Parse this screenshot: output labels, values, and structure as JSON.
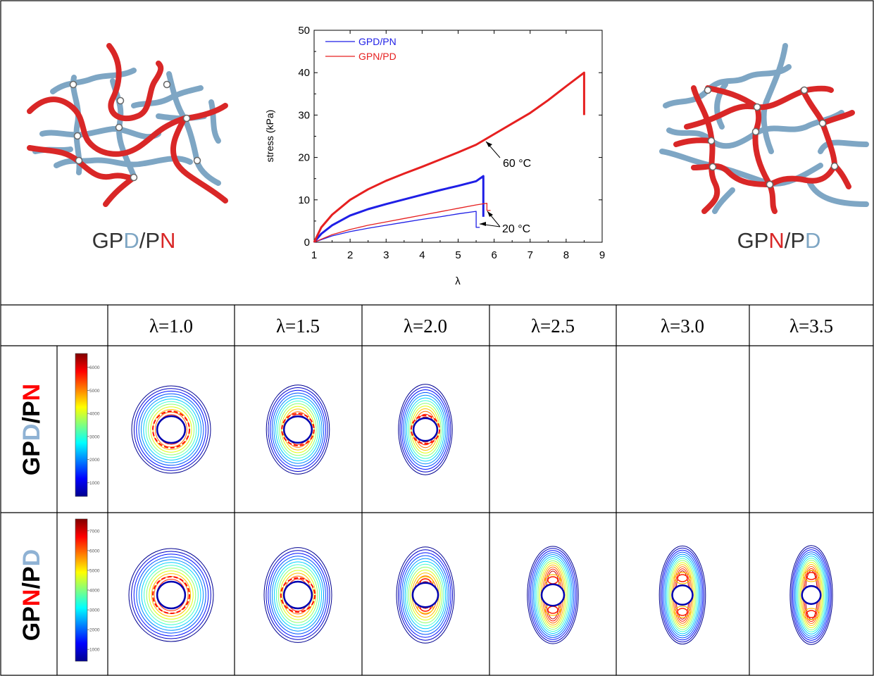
{
  "network_left": {
    "label_parts": [
      {
        "text": "GP",
        "color": "#333333"
      },
      {
        "text": "D",
        "color": "#7ea6c4"
      },
      {
        "text": "/P",
        "color": "#333333"
      },
      {
        "text": "N",
        "color": "#d92727"
      }
    ]
  },
  "network_right": {
    "label_parts": [
      {
        "text": "GP",
        "color": "#333333"
      },
      {
        "text": "N",
        "color": "#d92727"
      },
      {
        "text": "/P",
        "color": "#333333"
      },
      {
        "text": "D",
        "color": "#7ea6c4"
      }
    ]
  },
  "chart_data": {
    "type": "line",
    "xlabel": "λ",
    "ylabel": "stress (kPa)",
    "xlim": [
      1,
      9
    ],
    "ylim": [
      0,
      50
    ],
    "xticks": [
      "1",
      "2",
      "3",
      "4",
      "5",
      "6",
      "7",
      "8",
      "9"
    ],
    "yticks": [
      "0",
      "10",
      "20",
      "30",
      "40",
      "50"
    ],
    "legend_position": "top-left",
    "annotations": [
      "60 °C",
      "20 °C"
    ],
    "series": [
      {
        "name": "GPD/PN",
        "color": "#1f1fe6",
        "temperature": "60 °C",
        "x": [
          1.0,
          1.2,
          1.5,
          2.0,
          2.5,
          3.0,
          3.5,
          4.0,
          4.5,
          5.0,
          5.5,
          5.7,
          5.7
        ],
        "y": [
          0.0,
          2.0,
          4.0,
          6.3,
          7.8,
          9.0,
          10.1,
          11.2,
          12.3,
          13.3,
          14.4,
          15.6,
          6.0
        ]
      },
      {
        "name": "GPN/PD",
        "color": "#e62020",
        "temperature": "60 °C",
        "x": [
          1.0,
          1.2,
          1.5,
          2.0,
          2.5,
          3.0,
          3.5,
          4.0,
          4.5,
          5.0,
          5.5,
          6.0,
          6.5,
          7.0,
          7.5,
          8.0,
          8.5,
          8.5
        ],
        "y": [
          0.0,
          3.5,
          6.5,
          10.0,
          12.5,
          14.5,
          16.2,
          17.8,
          19.5,
          21.2,
          23.0,
          25.5,
          28.0,
          30.5,
          33.5,
          36.8,
          40.0,
          30.0
        ]
      },
      {
        "name": "GPD/PN",
        "color": "#1f1fe6",
        "temperature": "20 °C",
        "x": [
          1.0,
          1.5,
          2.0,
          2.5,
          3.0,
          3.5,
          4.0,
          4.5,
          5.0,
          5.5,
          5.5,
          5.6
        ],
        "y": [
          0.0,
          1.5,
          2.5,
          3.3,
          4.0,
          4.7,
          5.4,
          6.0,
          6.7,
          7.3,
          3.5,
          3.5
        ]
      },
      {
        "name": "GPN/PD",
        "color": "#e62020",
        "temperature": "20 °C",
        "x": [
          1.0,
          1.5,
          2.0,
          2.5,
          3.0,
          3.5,
          4.0,
          4.5,
          5.0,
          5.5,
          5.8,
          5.8,
          5.9
        ],
        "y": [
          0.0,
          1.8,
          3.0,
          4.0,
          4.8,
          5.6,
          6.4,
          7.2,
          8.0,
          8.8,
          9.2,
          7.5,
          7.5
        ]
      }
    ]
  },
  "table": {
    "header": [
      "λ=1.0",
      "λ=1.5",
      "λ=2.0",
      "λ=2.5",
      "λ=3.0",
      "λ=3.5"
    ],
    "rows": [
      {
        "label_parts": [
          {
            "text": "GP",
            "color": "#000000"
          },
          {
            "text": "D",
            "color": "#8fb2d4"
          },
          {
            "text": "/P",
            "color": "#000000"
          },
          {
            "text": "N",
            "color": "#ff0000"
          }
        ],
        "colorbar_ticks": [
          "6000",
          "5000",
          "4000",
          "3000",
          "2000",
          "1000"
        ],
        "contours": [
          {
            "stretch": 1.0,
            "present": true
          },
          {
            "stretch": 1.5,
            "present": true
          },
          {
            "stretch": 2.0,
            "present": true
          },
          {
            "stretch": 2.5,
            "present": false
          },
          {
            "stretch": 3.0,
            "present": false
          },
          {
            "stretch": 3.5,
            "present": false
          }
        ]
      },
      {
        "label_parts": [
          {
            "text": "GP",
            "color": "#000000"
          },
          {
            "text": "N",
            "color": "#ff0000"
          },
          {
            "text": "/P",
            "color": "#000000"
          },
          {
            "text": "D",
            "color": "#8fb2d4"
          }
        ],
        "colorbar_ticks": [
          "7000",
          "6000",
          "5000",
          "4000",
          "3000",
          "2000",
          "1000"
        ],
        "contours": [
          {
            "stretch": 1.0,
            "present": true
          },
          {
            "stretch": 1.5,
            "present": true
          },
          {
            "stretch": 2.0,
            "present": true
          },
          {
            "stretch": 2.5,
            "present": true
          },
          {
            "stretch": 3.0,
            "present": true
          },
          {
            "stretch": 3.5,
            "present": true
          }
        ]
      }
    ]
  }
}
